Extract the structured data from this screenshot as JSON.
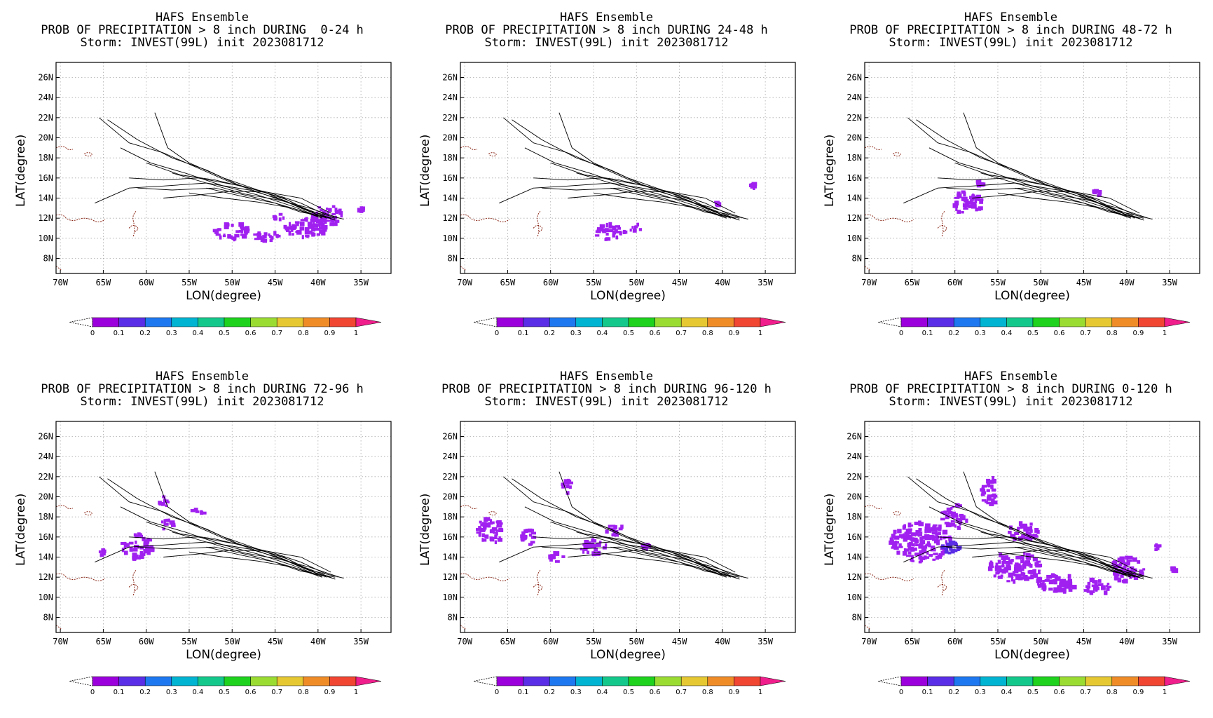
{
  "common": {
    "ensemble_title": "HAFS Ensemble",
    "storm_line": "Storm: INVEST(99L) init 2023081712",
    "x_axis_label": "LON(degree)",
    "y_axis_label": "LAT(degree)",
    "lon_ticks": [
      "70W",
      "65W",
      "60W",
      "55W",
      "50W",
      "45W",
      "40W",
      "35W"
    ],
    "lat_ticks": [
      "26N",
      "24N",
      "22N",
      "20N",
      "18N",
      "16N",
      "14N",
      "12N",
      "10N",
      "8N"
    ],
    "colorbar_ticks": [
      "0",
      "0.1",
      "0.2",
      "0.3",
      "0.4",
      "0.5",
      "0.6",
      "0.7",
      "0.8",
      "0.9",
      "1"
    ],
    "colorbar_colors": [
      "#9b00dc",
      "#5a2ee6",
      "#1e78f0",
      "#00b4d2",
      "#14c88c",
      "#1ed21e",
      "#9bdc32",
      "#e6c832",
      "#f08c28",
      "#f04632"
    ],
    "colorbar_overflow_color": "#f01e8c",
    "probability_color": "#a020f0",
    "track_color": "#000000",
    "coast_color": "#8b2a1a"
  },
  "panels": [
    {
      "id": "p1",
      "heading": "PROB OF PRECIPITATION > 8 inch DURING  0-24 h"
    },
    {
      "id": "p2",
      "heading": "PROB OF PRECIPITATION > 8 inch DURING 24-48 h"
    },
    {
      "id": "p3",
      "heading": "PROB OF PRECIPITATION > 8 inch DURING 48-72 h"
    },
    {
      "id": "p4",
      "heading": "PROB OF PRECIPITATION > 8 inch DURING 72-96 h"
    },
    {
      "id": "p5",
      "heading": "PROB OF PRECIPITATION > 8 inch DURING 96-120 h"
    },
    {
      "id": "p6",
      "heading": "PROB OF PRECIPITATION > 8 inch DURING 0-120 h"
    }
  ],
  "map_data": {
    "lon_range": [
      -70.5,
      -31.5
    ],
    "lat_range": [
      6.5,
      27.5
    ],
    "tracks": [
      [
        [
          -65.5,
          22
        ],
        [
          -62,
          19.5
        ],
        [
          -58,
          18.5
        ],
        [
          -54,
          17
        ],
        [
          -50,
          15.5
        ],
        [
          -46,
          14.5
        ],
        [
          -42,
          13
        ],
        [
          -39,
          12
        ]
      ],
      [
        [
          -64.5,
          21.8
        ],
        [
          -61,
          19.8
        ],
        [
          -57,
          18
        ],
        [
          -53,
          16.8
        ],
        [
          -49,
          15.2
        ],
        [
          -45,
          14
        ],
        [
          -41,
          12.8
        ],
        [
          -38,
          11.8
        ]
      ],
      [
        [
          -63,
          19
        ],
        [
          -59.5,
          17.5
        ],
        [
          -55.5,
          16.5
        ],
        [
          -51,
          15.2
        ],
        [
          -47,
          14.3
        ],
        [
          -43,
          13.2
        ],
        [
          -40,
          12.2
        ]
      ],
      [
        [
          -66,
          13.5
        ],
        [
          -62,
          15
        ],
        [
          -58,
          15.2
        ],
        [
          -53,
          15.5
        ],
        [
          -48,
          14.8
        ],
        [
          -44,
          13.8
        ],
        [
          -40.5,
          12.5
        ],
        [
          -38,
          11.8
        ]
      ],
      [
        [
          -61,
          15
        ],
        [
          -57,
          14.8
        ],
        [
          -52,
          15
        ],
        [
          -47,
          14
        ],
        [
          -43,
          13
        ],
        [
          -39.5,
          12.1
        ]
      ],
      [
        [
          -62,
          16
        ],
        [
          -58,
          15.8
        ],
        [
          -54,
          16
        ],
        [
          -49.5,
          15.3
        ],
        [
          -45.5,
          14.5
        ],
        [
          -42,
          13.5
        ],
        [
          -39,
          12.3
        ]
      ],
      [
        [
          -59,
          22.5
        ],
        [
          -57.5,
          19
        ],
        [
          -55,
          17.5
        ],
        [
          -51,
          16
        ],
        [
          -47,
          14.8
        ],
        [
          -43.5,
          13.8
        ],
        [
          -40,
          12.3
        ]
      ],
      [
        [
          -60,
          17.5
        ],
        [
          -56,
          16.3
        ],
        [
          -52,
          15.8
        ],
        [
          -48,
          15
        ],
        [
          -44,
          14
        ],
        [
          -41,
          12.7
        ],
        [
          -37,
          11.9
        ]
      ],
      [
        [
          -55,
          14.5
        ],
        [
          -51,
          14
        ],
        [
          -47,
          13.6
        ],
        [
          -43,
          13
        ],
        [
          -39.5,
          12
        ]
      ],
      [
        [
          -58,
          14
        ],
        [
          -54,
          14.3
        ],
        [
          -50,
          14.7
        ],
        [
          -46,
          14.6
        ],
        [
          -42,
          14
        ],
        [
          -38.5,
          12.5
        ]
      ],
      [
        [
          -53,
          15
        ],
        [
          -49,
          14.2
        ],
        [
          -45,
          13.5
        ],
        [
          -42,
          12.6
        ],
        [
          -38,
          12
        ]
      ],
      [
        [
          -57,
          16.5
        ],
        [
          -53,
          15.5
        ],
        [
          -48.5,
          14.4
        ],
        [
          -44.5,
          13.8
        ],
        [
          -41,
          13
        ],
        [
          -37.5,
          12
        ]
      ]
    ],
    "blobs_by_panel": [
      [
        [
          -50,
          10.7,
          2.2,
          0.8
        ],
        [
          -46,
          10.1,
          1.5,
          0.6
        ],
        [
          -41.5,
          11,
          2.5,
          0.9
        ],
        [
          -39,
          12.2,
          1.8,
          1.1
        ],
        [
          -44.5,
          12.2,
          0.8,
          0.4
        ],
        [
          -35,
          12.9,
          0.5,
          0.25
        ]
      ],
      [
        [
          -53,
          10.6,
          1.8,
          0.8
        ],
        [
          -50,
          11,
          0.8,
          0.4
        ],
        [
          -36.5,
          15.2,
          0.3,
          0.3
        ],
        [
          -40.5,
          13.5,
          0.3,
          0.3
        ]
      ],
      [
        [
          -58.5,
          13.5,
          1.8,
          1.2
        ],
        [
          -57,
          15.5,
          0.5,
          0.5
        ],
        [
          -43.5,
          14.5,
          0.5,
          0.3
        ]
      ],
      [
        [
          -61,
          15,
          1.8,
          1.3
        ],
        [
          -58,
          19.5,
          0.6,
          0.6
        ],
        [
          -57.5,
          17.2,
          0.8,
          0.5
        ],
        [
          -54,
          18.5,
          0.9,
          0.3
        ],
        [
          -65,
          14.5,
          0.4,
          0.4
        ]
      ],
      [
        [
          -67,
          16.6,
          1.6,
          1.3
        ],
        [
          -62.5,
          16,
          1,
          0.8
        ],
        [
          -58,
          21,
          0.6,
          0.7
        ],
        [
          -55,
          15,
          1.5,
          0.8
        ],
        [
          -52.5,
          16.7,
          1,
          0.6
        ],
        [
          -59.5,
          14,
          1,
          0.5
        ],
        [
          -49,
          15,
          0.5,
          0.4
        ]
      ],
      [
        [
          -64,
          15.5,
          3.5,
          2
        ],
        [
          -60,
          18,
          1.5,
          1.2
        ],
        [
          -56,
          20.5,
          1,
          1.5
        ],
        [
          -53,
          13,
          3,
          1.5
        ],
        [
          -48,
          11.5,
          2.5,
          1
        ],
        [
          -43.5,
          11,
          1.5,
          0.8
        ],
        [
          -40,
          12.8,
          2,
          1.3
        ],
        [
          -52,
          16.5,
          1.8,
          0.9
        ],
        [
          -36.5,
          15,
          0.3,
          0.3
        ],
        [
          -34.5,
          12.8,
          0.3,
          0.2
        ]
      ]
    ],
    "dense_by_panel": [
      [],
      [],
      [],
      [],
      [],
      [
        [
          -60.5,
          15,
          1.2,
          0.6
        ]
      ]
    ]
  }
}
